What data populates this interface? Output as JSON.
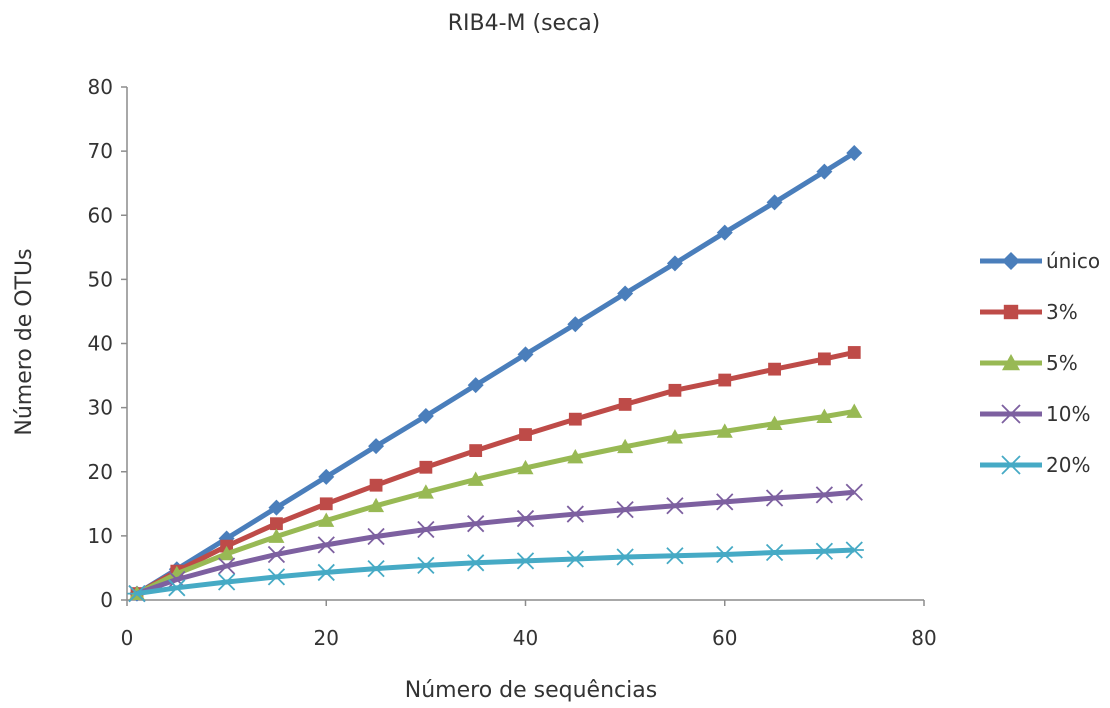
{
  "chart_data": {
    "type": "line",
    "title": "RIB4-M (seca)",
    "xlabel": "Número de sequências",
    "ylabel": "Número de OTUs",
    "xlim": [
      0,
      80
    ],
    "ylim": [
      0,
      80
    ],
    "xticks": [
      0,
      20,
      40,
      60,
      80
    ],
    "yticks": [
      0,
      10,
      20,
      30,
      40,
      50,
      60,
      70,
      80
    ],
    "grid": false,
    "legend_position": "right",
    "x": [
      1,
      5,
      10,
      15,
      20,
      25,
      30,
      35,
      40,
      45,
      50,
      55,
      60,
      65,
      70,
      73
    ],
    "series": [
      {
        "name": "único",
        "color": "#4a7ebb",
        "marker": "diamond",
        "values": [
          1,
          4.8,
          9.6,
          14.4,
          19.2,
          24,
          28.7,
          33.5,
          38.3,
          43,
          47.8,
          52.5,
          57.3,
          62,
          66.8,
          69.7
        ]
      },
      {
        "name": "3%",
        "color": "#be4b48",
        "marker": "square",
        "values": [
          1,
          4.5,
          8.4,
          11.9,
          15,
          17.9,
          20.7,
          23.3,
          25.8,
          28.2,
          30.5,
          32.7,
          34.3,
          36,
          37.6,
          38.6
        ]
      },
      {
        "name": "5%",
        "color": "#98b954",
        "marker": "triangle",
        "values": [
          1,
          4.1,
          7.2,
          9.9,
          12.4,
          14.7,
          16.8,
          18.8,
          20.6,
          22.3,
          23.9,
          25.4,
          26.3,
          27.5,
          28.6,
          29.4
        ]
      },
      {
        "name": "10%",
        "color": "#7d60a0",
        "marker": "x",
        "values": [
          1,
          3.2,
          5.3,
          7.1,
          8.6,
          9.9,
          11,
          11.9,
          12.7,
          13.4,
          14.1,
          14.7,
          15.3,
          15.9,
          16.4,
          16.8
        ]
      },
      {
        "name": "20%",
        "color": "#46aac5",
        "marker": "star",
        "values": [
          1,
          1.9,
          2.8,
          3.6,
          4.3,
          4.9,
          5.4,
          5.8,
          6.1,
          6.4,
          6.7,
          6.9,
          7.1,
          7.4,
          7.6,
          7.8
        ]
      }
    ]
  }
}
